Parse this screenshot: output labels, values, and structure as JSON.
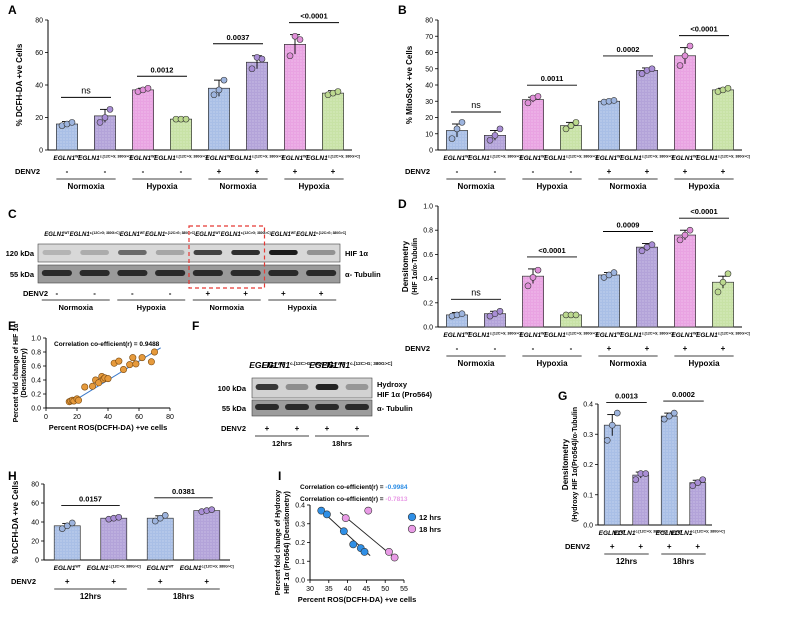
{
  "colors": {
    "blue": "#a9bfe6",
    "purple": "#b3a3d9",
    "pink": "#e9a3e2",
    "green": "#c8e2a6",
    "dot_blue": "#9db4de",
    "dot_purple": "#a98ed6",
    "dot_pink": "#e08fd8",
    "dot_green": "#bcd98f",
    "scatter_orange": "#e69a3c",
    "scatter_blue": "#2f8fe6",
    "scatter_pink": "#e99be6",
    "line_blue": "#3a78c8",
    "ref_red": "#e53935"
  },
  "strings": {
    "wt": "EGLN1",
    "wt_sup": "WT",
    "mut": "EGLN1",
    "mut_sup": "c.[12C>G; 380G>C]",
    "denv2": "DENV2",
    "minus": "-",
    "plus": "+",
    "normoxia": "Normoxia",
    "hypoxia": "Hypoxia",
    "h12": "12hrs",
    "h18": "18hrs"
  },
  "panels": {
    "A": "A",
    "B": "B",
    "C": "C",
    "D": "D",
    "E": "E",
    "F": "F",
    "G": "G",
    "H": "H",
    "I": "I"
  },
  "chart_data": [
    {
      "id": "A",
      "type": "bar",
      "ylabel": "% DCFH-DA +ve Cells",
      "ylim": [
        0,
        80
      ],
      "yticks": [
        0,
        20,
        40,
        60,
        80
      ],
      "values": [
        16,
        21,
        37,
        19,
        38,
        54,
        65,
        35
      ],
      "errors": [
        1.5,
        4,
        1,
        0.8,
        5,
        4,
        6,
        1.5
      ],
      "dots": [
        [
          15,
          16,
          17
        ],
        [
          17,
          20,
          25
        ],
        [
          36,
          37,
          38
        ],
        [
          19,
          19,
          19
        ],
        [
          34,
          37,
          43
        ],
        [
          50,
          57,
          56
        ],
        [
          58,
          70,
          68
        ],
        [
          34,
          35,
          36
        ]
      ],
      "colors": [
        "blue",
        "purple",
        "pink",
        "green",
        "blue",
        "purple",
        "pink",
        "green"
      ],
      "genotypes": [
        "wt",
        "mut",
        "wt",
        "mut",
        "wt",
        "mut",
        "wt",
        "mut"
      ],
      "denv": [
        "minus",
        "minus",
        "minus",
        "minus",
        "plus",
        "plus",
        "plus",
        "plus"
      ],
      "sig": [
        {
          "from": 0,
          "to": 1,
          "label": "ns"
        },
        {
          "from": 2,
          "to": 3,
          "label": "0.0012"
        },
        {
          "from": 4,
          "to": 5,
          "label": "0.0037"
        },
        {
          "from": 6,
          "to": 7,
          "label": "<0.0001"
        }
      ],
      "groups": [
        "normoxia",
        "hypoxia",
        "normoxia",
        "hypoxia"
      ]
    },
    {
      "id": "B",
      "type": "bar",
      "ylabel": "% MitoSoX +ve Cells",
      "ylim": [
        0,
        80
      ],
      "yticks": [
        0,
        10,
        20,
        30,
        40,
        50,
        60,
        70,
        80
      ],
      "values": [
        12,
        9,
        31,
        15,
        30,
        49,
        58,
        37
      ],
      "errors": [
        4,
        3,
        1.5,
        2,
        0.6,
        1.5,
        5,
        1
      ],
      "dots": [
        [
          7,
          13,
          17
        ],
        [
          6,
          9,
          13
        ],
        [
          29,
          32,
          33
        ],
        [
          13,
          15,
          17
        ],
        [
          29.5,
          30,
          30.5
        ],
        [
          47,
          49,
          50
        ],
        [
          52,
          58,
          64
        ],
        [
          36,
          37,
          38
        ]
      ],
      "colors": [
        "blue",
        "purple",
        "pink",
        "green",
        "blue",
        "purple",
        "pink",
        "green"
      ],
      "genotypes": [
        "wt",
        "mut",
        "wt",
        "mut",
        "wt",
        "mut",
        "wt",
        "mut"
      ],
      "denv": [
        "minus",
        "minus",
        "minus",
        "minus",
        "plus",
        "plus",
        "plus",
        "plus"
      ],
      "sig": [
        {
          "from": 0,
          "to": 1,
          "label": "ns"
        },
        {
          "from": 2,
          "to": 3,
          "label": "0.0011"
        },
        {
          "from": 4,
          "to": 5,
          "label": "0.0002"
        },
        {
          "from": 6,
          "to": 7,
          "label": "<0.0001"
        }
      ],
      "groups": [
        "normoxia",
        "hypoxia",
        "normoxia",
        "hypoxia"
      ]
    },
    {
      "id": "D",
      "type": "bar",
      "ylabel": "Densitometry",
      "ylabel2": "(HIF 1α/α-Tubulin",
      "ylim": [
        0,
        1.0
      ],
      "yticks": [
        0.0,
        0.2,
        0.4,
        0.6,
        0.8,
        1.0
      ],
      "values": [
        0.1,
        0.11,
        0.42,
        0.1,
        0.43,
        0.66,
        0.76,
        0.37
      ],
      "errors": [
        0.02,
        0.02,
        0.06,
        0.01,
        0.02,
        0.03,
        0.04,
        0.05
      ],
      "dots": [
        [
          0.09,
          0.1,
          0.11
        ],
        [
          0.09,
          0.11,
          0.13
        ],
        [
          0.34,
          0.41,
          0.47
        ],
        [
          0.1,
          0.1,
          0.1
        ],
        [
          0.41,
          0.43,
          0.45
        ],
        [
          0.63,
          0.66,
          0.68
        ],
        [
          0.72,
          0.76,
          0.8
        ],
        [
          0.29,
          0.37,
          0.44
        ]
      ],
      "colors": [
        "blue",
        "purple",
        "pink",
        "green",
        "blue",
        "purple",
        "pink",
        "green"
      ],
      "genotypes": [
        "wt",
        "mut",
        "wt",
        "mut",
        "wt",
        "mut",
        "wt",
        "mut"
      ],
      "denv": [
        "minus",
        "minus",
        "minus",
        "minus",
        "plus",
        "plus",
        "plus",
        "plus"
      ],
      "sig": [
        {
          "from": 0,
          "to": 1,
          "label": "ns"
        },
        {
          "from": 2,
          "to": 3,
          "label": "<0.0001"
        },
        {
          "from": 4,
          "to": 5,
          "label": "0.0009"
        },
        {
          "from": 6,
          "to": 7,
          "label": "<0.0001"
        }
      ],
      "groups": [
        "normoxia",
        "hypoxia",
        "normoxia",
        "hypoxia"
      ]
    },
    {
      "id": "G",
      "type": "bar",
      "ylabel": "Densitometry",
      "ylabel2": "(Hydroxy HIF 1α(Pro564)/α-Tubulin",
      "ylim": [
        0,
        0.4
      ],
      "yticks": [
        0.0,
        0.1,
        0.2,
        0.3,
        0.4
      ],
      "values": [
        0.33,
        0.165,
        0.36,
        0.14
      ],
      "errors": [
        0.035,
        0.01,
        0.01,
        0.008
      ],
      "dots": [
        [
          0.28,
          0.33,
          0.37
        ],
        [
          0.15,
          0.17,
          0.17
        ],
        [
          0.35,
          0.36,
          0.37
        ],
        [
          0.13,
          0.14,
          0.15
        ]
      ],
      "colors": [
        "blue",
        "purple",
        "blue",
        "purple"
      ],
      "genotypes": [
        "wt",
        "mut",
        "wt",
        "mut"
      ],
      "denv": [
        "plus",
        "plus",
        "plus",
        "plus"
      ],
      "sig": [
        {
          "from": 0,
          "to": 1,
          "label": "0.0013"
        },
        {
          "from": 2,
          "to": 3,
          "label": "0.0002"
        }
      ],
      "groups": [
        "h12",
        "h18"
      ]
    },
    {
      "id": "H",
      "type": "bar",
      "ylabel": "% DCFH-DA +ve Cells",
      "ylim": [
        0,
        80
      ],
      "yticks": [
        0,
        20,
        40,
        60,
        80
      ],
      "values": [
        36,
        44,
        44,
        52
      ],
      "errors": [
        2.5,
        0.8,
        2.5,
        0.8
      ],
      "dots": [
        [
          33,
          36,
          39
        ],
        [
          43,
          44,
          45
        ],
        [
          41,
          44,
          47
        ],
        [
          51,
          52,
          53
        ]
      ],
      "colors": [
        "blue",
        "purple",
        "blue",
        "purple"
      ],
      "genotypes": [
        "wt",
        "mut",
        "wt",
        "mut"
      ],
      "denv": [
        "plus",
        "plus",
        "plus",
        "plus"
      ],
      "sig": [
        {
          "from": 0,
          "to": 1,
          "label": "0.0157"
        },
        {
          "from": 2,
          "to": 3,
          "label": "0.0381"
        }
      ],
      "groups": [
        "h12",
        "h18"
      ]
    },
    {
      "id": "E",
      "type": "scatter",
      "annotation": "Correlation co-efficient(r) = 0.9488",
      "xlabel": "Percent ROS(DCFH-DA) +ve cells",
      "ylabel": "Percent fold change of HIF 1α",
      "ylabel2": "(Densitometry)",
      "xlim": [
        0,
        80
      ],
      "ylim": [
        0,
        1.0
      ],
      "xticks": [
        0,
        20,
        40,
        60,
        80
      ],
      "yticks": [
        0.0,
        0.2,
        0.4,
        0.6,
        0.8,
        1.0
      ],
      "points": [
        [
          15,
          0.09
        ],
        [
          16,
          0.1
        ],
        [
          17,
          0.11
        ],
        [
          18,
          0.1
        ],
        [
          20,
          0.13
        ],
        [
          21,
          0.11
        ],
        [
          25,
          0.3
        ],
        [
          30,
          0.31
        ],
        [
          32,
          0.4
        ],
        [
          34,
          0.36
        ],
        [
          36,
          0.45
        ],
        [
          37,
          0.41
        ],
        [
          38,
          0.43
        ],
        [
          40,
          0.42
        ],
        [
          44,
          0.64
        ],
        [
          47,
          0.67
        ],
        [
          50,
          0.55
        ],
        [
          54,
          0.62
        ],
        [
          56,
          0.72
        ],
        [
          58,
          0.63
        ],
        [
          62,
          0.72
        ],
        [
          68,
          0.66
        ],
        [
          70,
          0.8
        ]
      ],
      "fit": [
        [
          15,
          0.06
        ],
        [
          74,
          0.86
        ]
      ]
    },
    {
      "id": "I",
      "type": "scatter",
      "annotation1": "Correlation co-efficient(r) = ",
      "r1": "-0.9984",
      "annotation2": "Correlation co-efficient(r) = ",
      "r2": "-0.7813",
      "legend": [
        "12 hrs",
        "18 hrs"
      ],
      "xlabel": "Percent ROS(DCFH-DA) +ve cells",
      "ylabel": "Percent fold change of Hydroxy",
      "ylabel2": "HIF 1α (Pro564) (Densitometry)",
      "xlim": [
        30,
        55
      ],
      "ylim": [
        0.0,
        0.4
      ],
      "xticks": [
        30,
        35,
        40,
        45,
        50,
        55
      ],
      "yticks": [
        0.0,
        0.1,
        0.2,
        0.3,
        0.4
      ],
      "series": [
        {
          "name": "12 hrs",
          "points": [
            [
              33,
              0.37
            ],
            [
              34.5,
              0.35
            ],
            [
              39,
              0.26
            ],
            [
              41.5,
              0.19
            ],
            [
              43.5,
              0.17
            ],
            [
              44.5,
              0.15
            ]
          ],
          "fit": [
            [
              32.5,
              0.38
            ],
            [
              46,
              0.13
            ]
          ]
        },
        {
          "name": "18 hrs",
          "points": [
            [
              39.5,
              0.33
            ],
            [
              45.5,
              0.37
            ],
            [
              51,
              0.15
            ],
            [
              52.5,
              0.12
            ]
          ],
          "fit": [
            [
              38,
              0.36
            ],
            [
              53,
              0.11
            ]
          ]
        }
      ]
    }
  ],
  "blots": {
    "C": {
      "mw": [
        "120 kDa",
        "55 kDa"
      ],
      "bands": [
        "HIF 1α",
        "α- Tubulin"
      ],
      "genotypes": [
        "wt",
        "mut",
        "wt",
        "mut",
        "wt",
        "mut",
        "wt",
        "mut"
      ],
      "denv": [
        "minus",
        "minus",
        "minus",
        "minus",
        "plus",
        "plus",
        "plus",
        "plus"
      ],
      "groups": [
        "normoxia",
        "hypoxia",
        "normoxia",
        "hypoxia"
      ],
      "intensity": [
        0.18,
        0.22,
        0.55,
        0.25,
        0.75,
        0.85,
        0.95,
        0.35
      ]
    },
    "F": {
      "mw": [
        "100 kDa",
        "55 kDa"
      ],
      "band1": "Hydroxy",
      "band1b": "HIF 1α (Pro564)",
      "band2": "α- Tubulin",
      "genotypes": [
        "wt",
        "mut",
        "wt",
        "mut"
      ],
      "denv": [
        "plus",
        "plus",
        "plus",
        "plus"
      ],
      "groups": [
        "h12",
        "h18"
      ],
      "intensity": [
        0.8,
        0.35,
        0.9,
        0.3
      ]
    }
  }
}
